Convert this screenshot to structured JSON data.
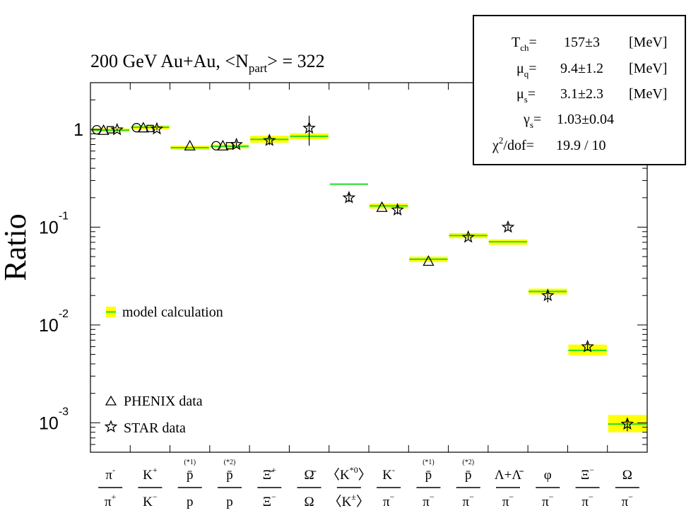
{
  "chart_data": {
    "type": "scatter",
    "title": "200 GeV Au+Au, <Npart> = 322",
    "title_main": "200 GeV Au+Au, <N",
    "title_sub": "part",
    "title_tail": "> = 322",
    "ylabel": "Ratio",
    "yscale": "log",
    "ylim": [
      0.0005,
      3.0
    ],
    "y_ticks": [
      {
        "value": 1,
        "mantissa": "1",
        "exp": ""
      },
      {
        "value": 0.1,
        "mantissa": "10",
        "exp": "-1"
      },
      {
        "value": 0.01,
        "mantissa": "10",
        "exp": "-2"
      },
      {
        "value": 0.001,
        "mantissa": "10",
        "exp": "-3"
      }
    ],
    "categories": [
      {
        "num": "π",
        "num_sup": "-",
        "num_note": "",
        "den": "π",
        "den_sup": "+"
      },
      {
        "num": "K",
        "num_sup": "+",
        "num_note": "",
        "den": "K",
        "den_sup": "−"
      },
      {
        "num": "p̄",
        "num_sup": "",
        "num_note": "(*1)",
        "den": "p",
        "den_sup": ""
      },
      {
        "num": "p̄",
        "num_sup": "",
        "num_note": "(*2)",
        "den": "p",
        "den_sup": ""
      },
      {
        "num": "Ξ̄",
        "num_sup": "+",
        "num_note": "",
        "den": "Ξ",
        "den_sup": "−"
      },
      {
        "num": "Ω̄",
        "num_sup": "",
        "num_note": "",
        "den": "Ω",
        "den_sup": ""
      },
      {
        "num": "〈K",
        "num_sup": "*0",
        "num_tail": "〉",
        "num_note": "",
        "den": "〈K",
        "den_sup": "±",
        "den_tail": "〉"
      },
      {
        "num": "K",
        "num_sup": "-",
        "num_note": "",
        "den": "π",
        "den_sup": "−"
      },
      {
        "num": "p̄",
        "num_sup": "",
        "num_note": "(*1)",
        "den": "π",
        "den_sup": "−"
      },
      {
        "num": "p̄",
        "num_sup": "",
        "num_note": "(*2)",
        "den": "π",
        "den_sup": "−"
      },
      {
        "num": "Λ+Λ̄",
        "num_sup": "",
        "num_note": "",
        "den": "π",
        "den_sup": "−"
      },
      {
        "num": "φ",
        "num_sup": "",
        "num_note": "",
        "den": "π",
        "den_sup": "−"
      },
      {
        "num": "Ξ",
        "num_sup": "−",
        "num_note": "",
        "den": "π",
        "den_sup": "−"
      },
      {
        "num": "Ω",
        "num_sup": "",
        "num_note": "",
        "den": "π",
        "den_sup": "−"
      }
    ],
    "model": {
      "name": "model calculation",
      "values": [
        0.98,
        1.05,
        0.65,
        0.67,
        0.79,
        0.85,
        0.275,
        0.165,
        0.047,
        0.082,
        0.071,
        0.022,
        0.0055,
        0.00097
      ],
      "band_low": [
        0.94,
        1.0,
        0.62,
        0.64,
        0.73,
        0.79,
        0.275,
        0.155,
        0.044,
        0.077,
        0.066,
        0.0205,
        0.0049,
        0.0008
      ],
      "band_high": [
        1.02,
        1.1,
        0.68,
        0.7,
        0.86,
        0.91,
        0.275,
        0.175,
        0.05,
        0.087,
        0.075,
        0.0235,
        0.0063,
        0.0012
      ]
    },
    "series": [
      {
        "name": "PHENIX data",
        "marker": "triangle",
        "points": [
          {
            "cat": 0,
            "y": 0.98
          },
          {
            "cat": 1,
            "y": 1.04
          },
          {
            "cat": 2,
            "y": 0.68
          },
          {
            "cat": 3,
            "y": 0.68
          },
          {
            "cat": 7,
            "y": 0.16
          },
          {
            "cat": 8,
            "y": 0.045
          }
        ]
      },
      {
        "name": "STAR data",
        "marker": "star",
        "points": [
          {
            "cat": 0,
            "y": 0.99,
            "err": 0.03
          },
          {
            "cat": 1,
            "y": 1.01,
            "err": 0.03
          },
          {
            "cat": 3,
            "y": 0.7,
            "err": 0.05
          },
          {
            "cat": 4,
            "y": 0.77,
            "err": 0.08
          },
          {
            "cat": 5,
            "y": 1.03,
            "err": 0.35
          },
          {
            "cat": 6,
            "y": 0.2,
            "err": 0.02
          },
          {
            "cat": 7,
            "y": 0.15,
            "err": 0.015
          },
          {
            "cat": 9,
            "y": 0.079,
            "err": 0.005
          },
          {
            "cat": 10,
            "y": 0.1,
            "err": 0.008
          },
          {
            "cat": 11,
            "y": 0.02,
            "err": 0.003
          },
          {
            "cat": 12,
            "y": 0.006,
            "err": 0.0005
          },
          {
            "cat": 13,
            "y": 0.00097,
            "err": 0.00015
          }
        ]
      }
    ],
    "extra_markers": [
      {
        "cat": 0,
        "y": 0.99,
        "marker": "circle"
      },
      {
        "cat": 1,
        "y": 1.04,
        "marker": "circle"
      },
      {
        "cat": 3,
        "y": 0.68,
        "marker": "circle"
      },
      {
        "cat": 0,
        "y": 0.99,
        "marker": "square"
      },
      {
        "cat": 1,
        "y": 1.02,
        "marker": "square"
      },
      {
        "cat": 3,
        "y": 0.68,
        "marker": "square"
      }
    ],
    "legend": [
      {
        "label": "model calculation",
        "marker": "band"
      },
      {
        "label": "PHENIX data",
        "marker": "triangle"
      },
      {
        "label": "STAR data",
        "marker": "star"
      }
    ],
    "fit_box": {
      "rows": [
        {
          "sym": "T",
          "sub": "ch",
          "val": "157±3",
          "unit": "[MeV]"
        },
        {
          "sym": "μ",
          "sub": "q",
          "val": "9.4±1.2",
          "unit": "[MeV]"
        },
        {
          "sym": "μ",
          "sub": "s",
          "val": "3.1±2.3",
          "unit": "[MeV]"
        },
        {
          "sym": "γ",
          "sub": "s",
          "val": "1.03±0.04",
          "unit": ""
        },
        {
          "sym": "χ",
          "sup": "2",
          "sym_tail": "/dof",
          "val": "19.9 / 10",
          "unit": ""
        }
      ]
    },
    "colors": {
      "band": "#ffff00",
      "line": "#22dd22",
      "marker": "#000000"
    }
  }
}
